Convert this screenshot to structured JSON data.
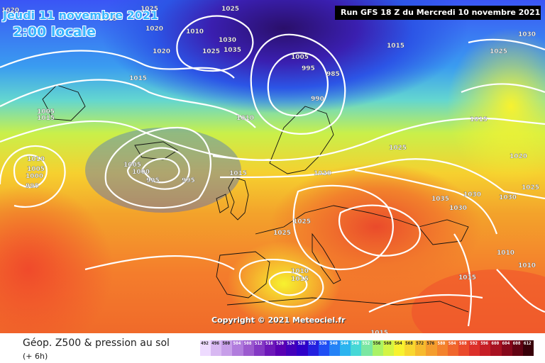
{
  "header": {
    "date": "Jeudi 11 novembre 2021",
    "time": "2:00 locale",
    "run": "Run GFS 18 Z du Mercredi 10 novembre 2021"
  },
  "footer": {
    "variable": "Géop. Z500 & pression au sol",
    "offset": "(+ 6h)",
    "copyright": "Copyright © 2021 Meteociel.fr"
  },
  "legend": {
    "values": [
      "492",
      "496",
      "500",
      "504",
      "508",
      "512",
      "516",
      "520",
      "524",
      "528",
      "532",
      "536",
      "540",
      "544",
      "548",
      "552",
      "556",
      "560",
      "564",
      "568",
      "572",
      "576",
      "580",
      "584",
      "588",
      "592",
      "596",
      "600",
      "604",
      "608",
      "612"
    ],
    "colors": [
      "#eedbff",
      "#d8b8f2",
      "#c79ee9",
      "#b17cdd",
      "#9c5acf",
      "#8438c4",
      "#6d17b9",
      "#5a00b3",
      "#4400bb",
      "#2f00c8",
      "#2420df",
      "#1f4ef4",
      "#2482f6",
      "#2bb4ef",
      "#46d8d6",
      "#7ae7a2",
      "#aaf265",
      "#d4f444",
      "#f7f22f",
      "#f8d72f",
      "#f6ba2e",
      "#f49d2e",
      "#f3822d",
      "#f0662c",
      "#ea4a2b",
      "#dc302a",
      "#c61e26",
      "#a81221",
      "#86081b",
      "#620313",
      "#380009"
    ]
  },
  "map": {
    "pressure_labels": [
      {
        "text": "1020"
      },
      {
        "text": "1015"
      },
      {
        "text": "1025"
      },
      {
        "text": "1025"
      },
      {
        "text": "1035"
      },
      {
        "text": "1030"
      },
      {
        "text": "1020"
      },
      {
        "text": "1010"
      },
      {
        "text": "1020"
      },
      {
        "text": "1030"
      },
      {
        "text": "1035"
      },
      {
        "text": "1025"
      },
      {
        "text": "1015"
      },
      {
        "text": "1005"
      },
      {
        "text": "995"
      },
      {
        "text": "985"
      },
      {
        "text": "1015"
      },
      {
        "text": "1025"
      },
      {
        "text": "1015"
      },
      {
        "text": "990"
      },
      {
        "text": "1010"
      },
      {
        "text": "1005"
      },
      {
        "text": "1015"
      },
      {
        "text": "1025"
      },
      {
        "text": "1010"
      },
      {
        "text": "1005"
      },
      {
        "text": "1000"
      },
      {
        "text": "995"
      },
      {
        "text": "1005"
      },
      {
        "text": "1000"
      },
      {
        "text": "995"
      },
      {
        "text": "995"
      },
      {
        "text": "1015"
      },
      {
        "text": "1020"
      },
      {
        "text": "1020"
      },
      {
        "text": "1025"
      },
      {
        "text": "1035"
      },
      {
        "text": "1030"
      },
      {
        "text": "1030"
      },
      {
        "text": "1030"
      },
      {
        "text": "1025"
      },
      {
        "text": "1025"
      },
      {
        "text": "1010"
      },
      {
        "text": "1010"
      },
      {
        "text": "1015"
      },
      {
        "text": "1010"
      },
      {
        "text": "1015"
      },
      {
        "text": "1015"
      }
    ]
  }
}
